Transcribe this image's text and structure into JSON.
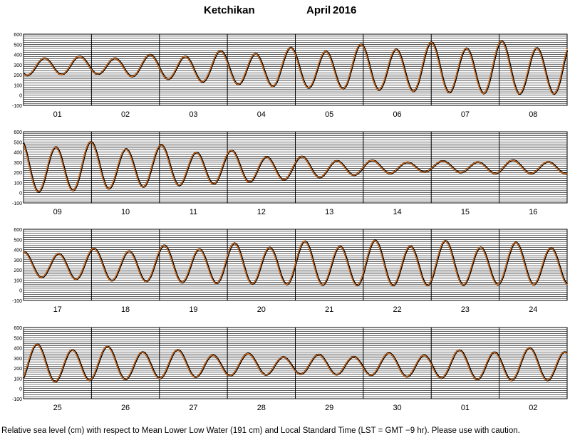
{
  "title": {
    "location": "Ketchikan",
    "month": "April",
    "year": "2016"
  },
  "footer": "Relative sea level (cm) with respect to Mean Lower Low Water (191 cm) and Local Standard Time (LST = GMT −9 hr). Please use with caution.",
  "colors": {
    "observed": "#000000",
    "predicted": "#e0701a",
    "grid": "#000000",
    "background": "#ffffff"
  },
  "chart_data": {
    "type": "line",
    "ylim": [
      -100,
      600
    ],
    "ytick_labels": [
      "600",
      "500",
      "400",
      "300",
      "200",
      "100",
      "0",
      "-100"
    ],
    "grid": true,
    "series": [
      {
        "name": "",
        "color": "#000000"
      },
      {
        "name": "",
        "color": "#e0701a"
      }
    ],
    "panels": [
      {
        "days": [
          "01",
          "02",
          "03",
          "04",
          "05",
          "06",
          "07",
          "08"
        ],
        "range_low": [
          180,
          200,
          150,
          90,
          50,
          30,
          0,
          -20
        ],
        "range_high": [
          390,
          380,
          400,
          440,
          470,
          500,
          520,
          530
        ],
        "phase_hours": 5
      },
      {
        "days": [
          "09",
          "10",
          "11",
          "12",
          "13",
          "14",
          "15",
          "16"
        ],
        "range_low": [
          -30,
          0,
          40,
          70,
          120,
          170,
          200,
          180
        ],
        "range_high": [
          520,
          500,
          470,
          420,
          360,
          320,
          310,
          320
        ],
        "phase_hours": 1
      },
      {
        "days": [
          "17",
          "18",
          "19",
          "20",
          "21",
          "22",
          "23",
          "24"
        ],
        "range_low": [
          120,
          80,
          60,
          40,
          30,
          20,
          20,
          30
        ],
        "range_high": [
          380,
          410,
          440,
          460,
          480,
          490,
          490,
          470
        ],
        "phase_hours": 0
      },
      {
        "days": [
          "25",
          "26",
          "27",
          "28",
          "29",
          "30",
          "01",
          "02"
        ],
        "range_low": [
          30,
          60,
          80,
          110,
          130,
          120,
          90,
          60
        ],
        "range_high": [
          440,
          420,
          390,
          350,
          330,
          340,
          360,
          400
        ],
        "phase_hours": 20
      }
    ]
  }
}
